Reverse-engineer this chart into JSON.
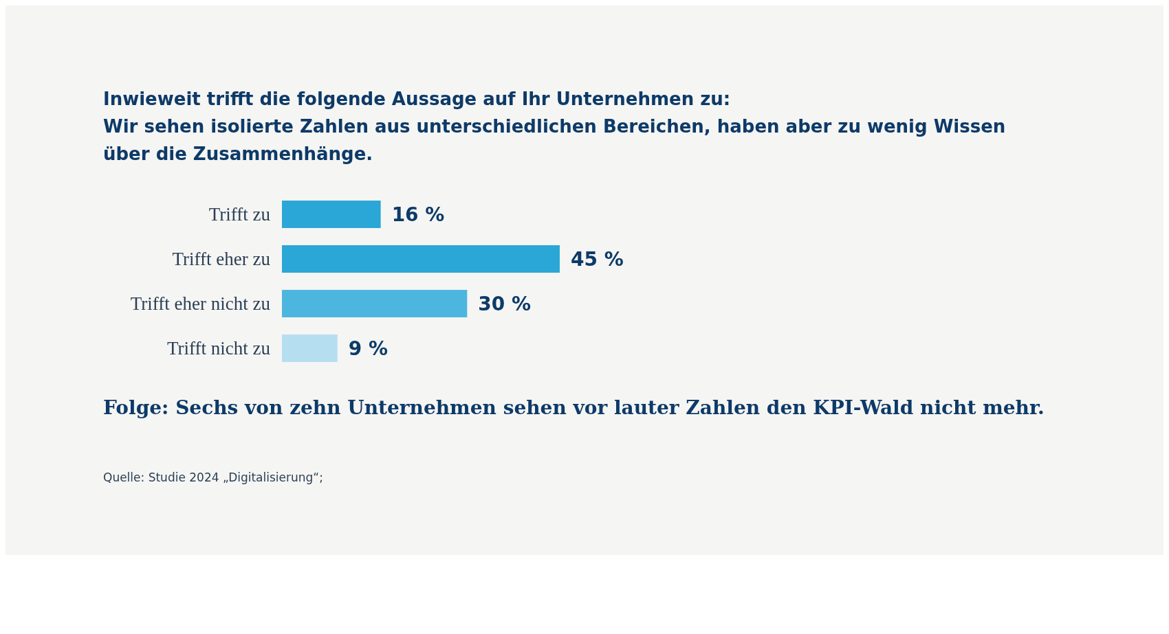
{
  "chart_data": {
    "type": "bar",
    "orientation": "horizontal",
    "title": "Inwieweit trifft die folgende Aussage auf Ihr Unternehmen zu:",
    "subtitle": "Wir sehen isolierte Zahlen aus unterschiedlichen Bereichen, haben aber zu wenig Wissen\nüber die Zusammenhänge.",
    "categories": [
      "Trifft zu",
      "Trifft eher zu",
      "Trifft eher nicht zu",
      "Trifft nicht zu"
    ],
    "values": [
      16,
      45,
      30,
      9
    ],
    "value_labels": [
      "16 %",
      "45 %",
      "30 %",
      "9 %"
    ],
    "colors": [
      "#2aa7d6",
      "#2aa7d6",
      "#4db6de",
      "#b5dff0"
    ],
    "annotations": [
      "Folge: Sechs von zehn Unternehmen sehen vor lauter Zahlen den KPI-Wald nicht mehr.",
      "Quelle: Studie 2024 „Digitalisierung“;"
    ]
  }
}
